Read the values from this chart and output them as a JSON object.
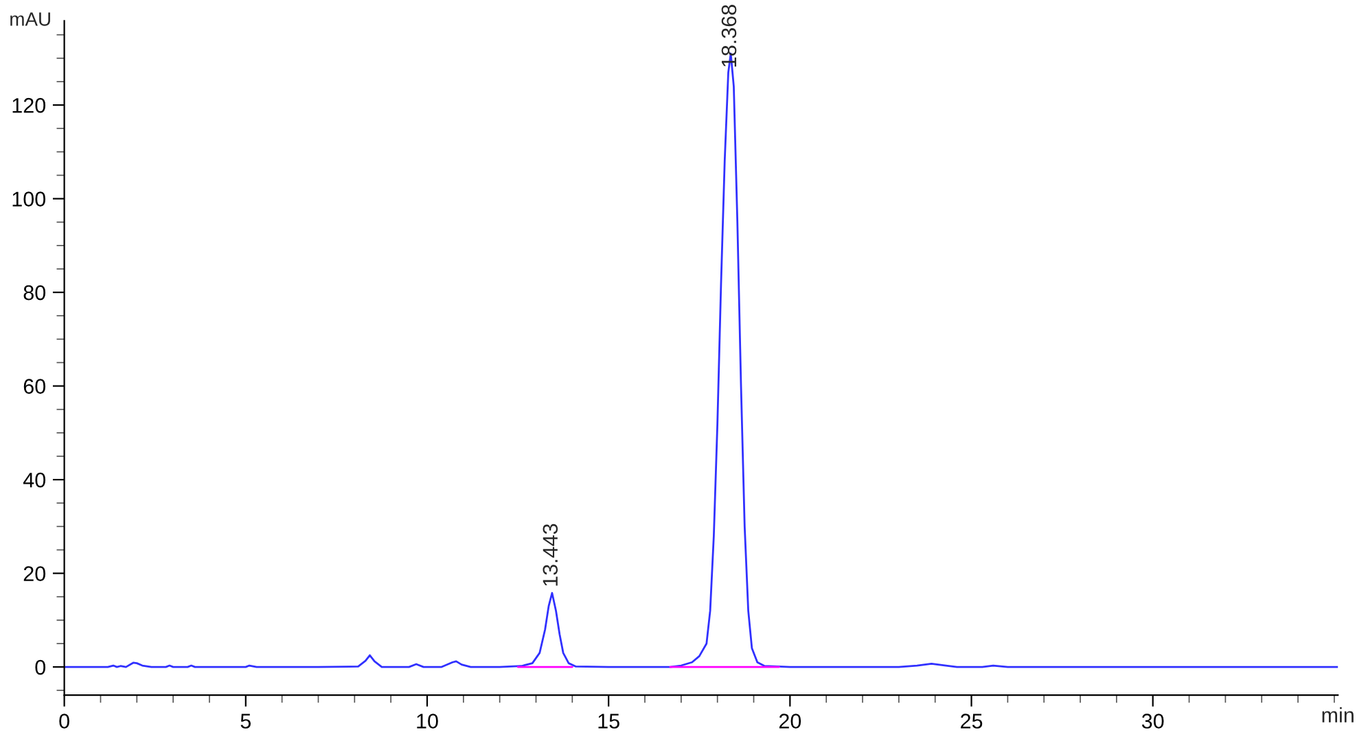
{
  "chart_data": {
    "type": "line",
    "xlabel": "min",
    "ylabel": "mAU",
    "series": [
      {
        "color": "#3030ff",
        "x": [
          0,
          1.2,
          1.35,
          1.45,
          1.55,
          1.7,
          1.9,
          2.0,
          2.15,
          2.4,
          2.8,
          2.9,
          3.0,
          3.4,
          3.5,
          3.6,
          5.0,
          5.1,
          5.3,
          7.0,
          8.1,
          8.3,
          8.42,
          8.55,
          8.75,
          9.0,
          9.5,
          9.7,
          9.9,
          10.4,
          10.7,
          10.8,
          10.95,
          11.2,
          12.0,
          12.6,
          12.9,
          13.1,
          13.25,
          13.35,
          13.443,
          13.55,
          13.65,
          13.75,
          13.9,
          14.1,
          15.0,
          16.0,
          16.7,
          17.0,
          17.3,
          17.5,
          17.7,
          17.8,
          17.9,
          18.0,
          18.1,
          18.2,
          18.3,
          18.368,
          18.45,
          18.55,
          18.65,
          18.75,
          18.85,
          18.95,
          19.1,
          19.3,
          20.0,
          23.0,
          23.5,
          23.9,
          24.3,
          24.6,
          25.3,
          25.6,
          26.0,
          35.1
        ],
        "values": [
          0,
          0,
          0.3,
          0,
          0.2,
          0,
          0.9,
          0.8,
          0.3,
          0,
          0,
          0.3,
          0,
          0,
          0.3,
          0,
          0,
          0.3,
          0,
          0,
          0.1,
          1.3,
          2.5,
          1.2,
          0,
          0,
          0,
          0.6,
          0,
          0,
          1.0,
          1.2,
          0.5,
          0,
          0,
          0.2,
          0.8,
          3,
          8,
          13,
          15.8,
          12,
          7,
          3,
          0.8,
          0.1,
          0,
          0,
          0,
          0.3,
          1,
          2.3,
          5,
          12,
          28,
          52,
          82,
          108,
          127,
          131,
          124,
          95,
          60,
          30,
          12,
          4,
          1,
          0.2,
          0,
          0,
          0.3,
          0.7,
          0.3,
          0,
          0,
          0.3,
          0,
          0
        ]
      },
      {
        "color": "#ff00ff",
        "x": [
          12.5,
          14.0
        ],
        "values": [
          0,
          0
        ]
      },
      {
        "color": "#ff00ff",
        "x": [
          16.7,
          19.7
        ],
        "values": [
          0,
          0
        ]
      }
    ],
    "annotations": [
      {
        "text": "13.443",
        "x": 13.443,
        "y": 15.8
      },
      {
        "text": "18.368",
        "x": 18.368,
        "y": 131
      }
    ],
    "xlim": [
      0,
      35.1
    ],
    "ylim": [
      -6,
      138
    ],
    "xticks": [
      0,
      {
        "value": 1,
        "label": null
      },
      {
        "value": 2,
        "label": null
      },
      {
        "value": 3,
        "label": null
      },
      {
        "value": 4,
        "label": null
      },
      5,
      {
        "value": 6,
        "label": null
      },
      {
        "value": 7,
        "label": null
      },
      {
        "value": 8,
        "label": null
      },
      {
        "value": 9,
        "label": null
      },
      10,
      {
        "value": 11,
        "label": null
      },
      {
        "value": 12,
        "label": null
      },
      {
        "value": 13,
        "label": null
      },
      {
        "value": 14,
        "label": null
      },
      15,
      {
        "value": 16,
        "label": null
      },
      {
        "value": 17,
        "label": null
      },
      {
        "value": 18,
        "label": null
      },
      {
        "value": 19,
        "label": null
      },
      20,
      {
        "value": 21,
        "label": null
      },
      {
        "value": 22,
        "label": null
      },
      {
        "value": 23,
        "label": null
      },
      {
        "value": 24,
        "label": null
      },
      25,
      {
        "value": 26,
        "label": null
      },
      {
        "value": 27,
        "label": null
      },
      {
        "value": 28,
        "label": null
      },
      {
        "value": 29,
        "label": null
      },
      30,
      {
        "value": 31,
        "label": null
      },
      {
        "value": 32,
        "label": null
      },
      {
        "value": 33,
        "label": null
      },
      {
        "value": 34,
        "label": null
      },
      {
        "value": 35,
        "label": null
      }
    ],
    "yticks": [
      {
        "value": -5,
        "label": null
      },
      0,
      {
        "value": 5,
        "label": null
      },
      {
        "value": 10,
        "label": null
      },
      {
        "value": 15,
        "label": null
      },
      20,
      {
        "value": 25,
        "label": null
      },
      {
        "value": 30,
        "label": null
      },
      {
        "value": 35,
        "label": null
      },
      40,
      {
        "value": 45,
        "label": null
      },
      {
        "value": 50,
        "label": null
      },
      {
        "value": 55,
        "label": null
      },
      60,
      {
        "value": 65,
        "label": null
      },
      {
        "value": 70,
        "label": null
      },
      {
        "value": 75,
        "label": null
      },
      80,
      {
        "value": 85,
        "label": null
      },
      {
        "value": 90,
        "label": null
      },
      {
        "value": 95,
        "label": null
      },
      100,
      {
        "value": 105,
        "label": null
      },
      {
        "value": 110,
        "label": null
      },
      {
        "value": 115,
        "label": null
      },
      120,
      {
        "value": 125,
        "label": null
      },
      {
        "value": 130,
        "label": null
      },
      {
        "value": 135,
        "label": null
      }
    ],
    "grid": false,
    "legend": false,
    "marker": "none",
    "line_style": "solid"
  }
}
